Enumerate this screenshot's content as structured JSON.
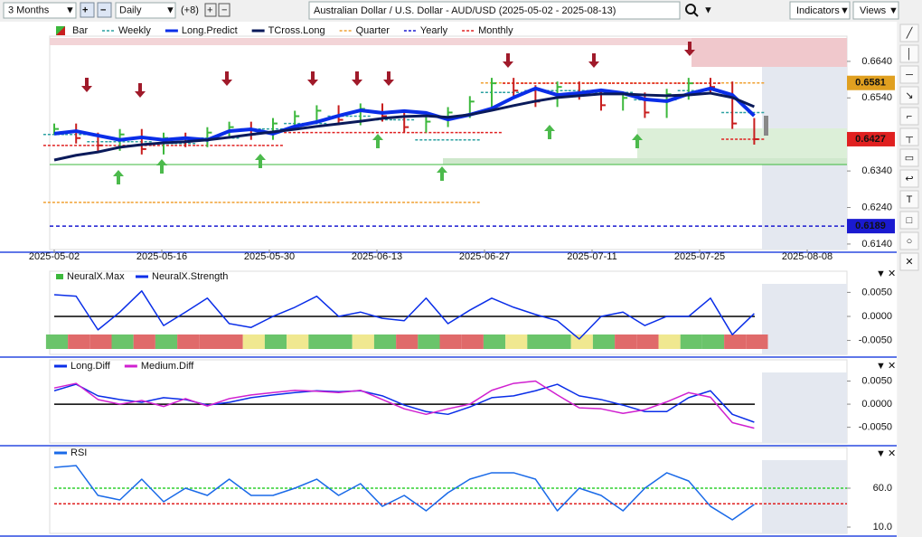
{
  "toolbar": {
    "range": "3 Months",
    "interval": "Daily",
    "offset": "(+8)",
    "title": "Australian Dollar / U.S. Dollar - AUD/USD (2025-05-02 - 2025-08-13)",
    "indicators": "Indicators",
    "views": "Views"
  },
  "dates": [
    "2025-05-02",
    "2025-05-16",
    "2025-05-30",
    "2025-06-13",
    "2025-06-27",
    "2025-07-11",
    "2025-07-25",
    "2025-08-08"
  ],
  "price_panel": {
    "ylim": [
      0.6125,
      0.6709
    ],
    "yticks": [
      {
        "value": 0.664,
        "label": "0.6640"
      },
      {
        "value": 0.654,
        "label": "0.6540"
      },
      {
        "value": 0.634,
        "label": "0.6340"
      },
      {
        "value": 0.624,
        "label": "0.6240"
      },
      {
        "value": 0.614,
        "label": "0.6140"
      }
    ],
    "badges": [
      {
        "value": 0.6581,
        "label": "0.6581",
        "color": "#e0a020",
        "text_color": "#000000"
      },
      {
        "value": 0.6427,
        "label": "0.6427",
        "color": "#e02020",
        "text_color": "#ffffff"
      },
      {
        "value": 0.6189,
        "label": "0.6189",
        "color": "#1a1ad0",
        "text_color": "#ffffff"
      }
    ],
    "yearly_line": {
      "name": "Yearly",
      "color": "#1a1ad0"
    },
    "bar": {
      "name": "Bar",
      "up_color": "#3cb83c",
      "down_color": "#c81e1e",
      "values": [
        0.6455,
        0.643,
        0.641,
        0.644,
        0.64,
        0.643,
        0.642,
        0.6445,
        0.646,
        0.644,
        0.647,
        0.649,
        0.6505,
        0.648,
        0.651,
        0.649,
        0.646,
        0.6475,
        0.65,
        0.653,
        0.658,
        0.656,
        0.653,
        0.657,
        0.655,
        0.652,
        0.654,
        0.65,
        0.655,
        0.658,
        0.657,
        0.647,
        0.6427
      ]
    },
    "series": [
      {
        "name": "Weekly",
        "color": "#2aa0a0",
        "style": "step",
        "values": [
          0.644,
          0.644,
          0.642,
          0.642,
          0.642,
          0.6415,
          0.6415,
          0.643,
          0.643,
          0.6455,
          0.6455,
          0.647,
          0.647,
          0.649,
          0.649,
          0.648,
          0.648,
          0.6425,
          0.6425,
          0.6425,
          0.6555,
          0.6555,
          0.656,
          0.656,
          0.656,
          0.6555,
          0.6555,
          0.6535,
          0.6535,
          0.656,
          0.656,
          0.65,
          0.65
        ]
      },
      {
        "name": "Long.Predict",
        "color": "#0a2ee8",
        "style": "line",
        "width": 4,
        "values": [
          0.6442,
          0.6449,
          0.6437,
          0.6425,
          0.6432,
          0.6425,
          0.643,
          0.6425,
          0.6449,
          0.6454,
          0.6442,
          0.6462,
          0.6474,
          0.6491,
          0.6506,
          0.6499,
          0.6504,
          0.6499,
          0.6481,
          0.6494,
          0.6511,
          0.6541,
          0.6566,
          0.6548,
          0.6553,
          0.6561,
          0.6553,
          0.6536,
          0.6531,
          0.6551,
          0.6566,
          0.6548,
          0.6491
        ]
      },
      {
        "name": "TCross.Long",
        "color": "#0a1a5a",
        "style": "line",
        "width": 3,
        "values": [
          0.637,
          0.6383,
          0.6392,
          0.6405,
          0.6412,
          0.6417,
          0.642,
          0.6425,
          0.6432,
          0.644,
          0.6447,
          0.6454,
          0.6462,
          0.6469,
          0.6476,
          0.6484,
          0.6489,
          0.6491,
          0.6487,
          0.6494,
          0.6506,
          0.6519,
          0.6531,
          0.6541,
          0.6546,
          0.6551,
          0.6551,
          0.6548,
          0.6546,
          0.6548,
          0.6553,
          0.6541,
          0.6516
        ]
      },
      {
        "name": "Quarter",
        "color": "#f0a030",
        "style": "step",
        "values": [
          0.6254,
          0.6254,
          0.6254,
          0.6254,
          0.6254,
          0.6254,
          0.6254,
          0.6254,
          0.6254,
          0.6254,
          0.6254,
          0.6254,
          0.6254,
          0.6254,
          0.6254,
          0.6254,
          0.6254,
          0.6254,
          0.6254,
          0.6254,
          0.6581,
          0.6581,
          0.6581,
          0.6581,
          0.6581,
          0.6581,
          0.6581,
          0.6581,
          0.6581,
          0.6581,
          0.6581,
          0.6581,
          0.6581
        ]
      },
      {
        "name": "Monthly",
        "color": "#e02020",
        "style": "step",
        "values": [
          0.641,
          0.641,
          0.641,
          0.641,
          0.641,
          0.641,
          0.641,
          0.641,
          0.641,
          0.641,
          0.641,
          0.6445,
          0.6445,
          0.6445,
          0.6445,
          0.6445,
          0.6445,
          0.6445,
          0.6445,
          0.6445,
          0.6445,
          0.658,
          0.658,
          0.658,
          0.658,
          0.658,
          0.658,
          0.658,
          0.658,
          0.658,
          0.658,
          0.6427,
          0.6427
        ]
      }
    ]
  },
  "neural_panel": {
    "ylim": [
      -0.0079,
      0.0094
    ],
    "yticks": [
      {
        "value": 0.005,
        "label": "0.0050"
      },
      {
        "value": 0,
        "label": "0.0000"
      },
      {
        "value": -0.005,
        "label": "-0.0050"
      }
    ],
    "max": {
      "name": "NeuralX.Max",
      "colors": [
        "#6ac46a",
        "#e06a6a",
        "#e06a6a",
        "#6ac46a",
        "#e06a6a",
        "#6ac46a",
        "#e06a6a",
        "#e06a6a",
        "#e06a6a",
        "#f0e890",
        "#6ac46a",
        "#f0e890",
        "#6ac46a",
        "#6ac46a",
        "#f0e890",
        "#6ac46a",
        "#e06a6a",
        "#6ac46a",
        "#e06a6a",
        "#e06a6a",
        "#6ac46a",
        "#f0e890",
        "#6ac46a",
        "#6ac46a",
        "#f0e890",
        "#6ac46a",
        "#e06a6a",
        "#e06a6a",
        "#f0e890",
        "#6ac46a",
        "#6ac46a",
        "#e06a6a",
        "#e06a6a"
      ]
    },
    "strength": {
      "name": "NeuralX.Strength",
      "color": "#0a2ee8",
      "values": [
        0.0045,
        0.0042,
        -0.0028,
        0.0009,
        0.0053,
        -0.0019,
        0.0009,
        0.0038,
        -0.0015,
        -0.0023,
        0,
        0.0019,
        0.0042,
        0,
        0.0009,
        -0.0004,
        -0.0009,
        0.0038,
        -0.0015,
        0.0013,
        0.0038,
        0.0019,
        0.0004,
        -0.0009,
        -0.0047,
        0,
        0.0009,
        -0.0019,
        0,
        0,
        0.0038,
        -0.0038,
        0.0006
      ]
    }
  },
  "diff_panel": {
    "ylim": [
      -0.0084,
      0.0096
    ],
    "yticks": [
      {
        "value": 0.005,
        "label": "0.0050"
      },
      {
        "value": 0,
        "label": "0.0000"
      },
      {
        "value": -0.005,
        "label": "-0.0050"
      }
    ],
    "series": [
      {
        "name": "Long.Diff",
        "color": "#0a2ee8",
        "values": [
          0.0029,
          0.0043,
          0.0018,
          0.001,
          0.0004,
          0.0014,
          0.001,
          -0.0002,
          0.0004,
          0.0014,
          0.002,
          0.0025,
          0.0029,
          0.0027,
          0.0029,
          0.0018,
          -0.0002,
          -0.0016,
          -0.0022,
          -0.0006,
          0.0014,
          0.0018,
          0.0029,
          0.0043,
          0.0018,
          0.001,
          -0.0002,
          -0.0016,
          -0.0016,
          0.0014,
          0.0029,
          -0.0022,
          -0.0039
        ]
      },
      {
        "name": "Medium.Diff",
        "color": "#d020d0",
        "values": [
          0.0035,
          0.0045,
          0.001,
          0.0,
          0.0008,
          -0.0005,
          0.0012,
          -0.0004,
          0.0012,
          0.002,
          0.0025,
          0.003,
          0.0028,
          0.0025,
          0.003,
          0.001,
          -0.001,
          -0.0022,
          -0.001,
          0.0,
          0.003,
          0.0045,
          0.005,
          0.002,
          -0.0008,
          -0.001,
          -0.002,
          -0.0012,
          0.0005,
          0.0025,
          0.0015,
          -0.004,
          -0.0052
        ]
      }
    ]
  },
  "rsi_panel": {
    "ylim": [
      1.9,
      112.3
    ],
    "yticks": [
      {
        "value": 60,
        "label": "60.0"
      },
      {
        "value": 10,
        "label": "10.0"
      }
    ],
    "levels": [
      {
        "value": 60,
        "color": "#30d030"
      },
      {
        "value": 40,
        "color": "#e02020"
      }
    ],
    "series": {
      "name": "RSI",
      "color": "#1a6ae8",
      "values": [
        86.7,
        89,
        50.7,
        44.9,
        71.6,
        42.6,
        60,
        50.7,
        71.6,
        50.7,
        50.7,
        60,
        71.6,
        50.7,
        65.8,
        36.7,
        50.7,
        30.9,
        54.2,
        71.6,
        79.8,
        79.8,
        71.6,
        30.9,
        60,
        50.7,
        30.9,
        60,
        79.8,
        69.3,
        36.7,
        19.3,
        39.1
      ]
    }
  }
}
